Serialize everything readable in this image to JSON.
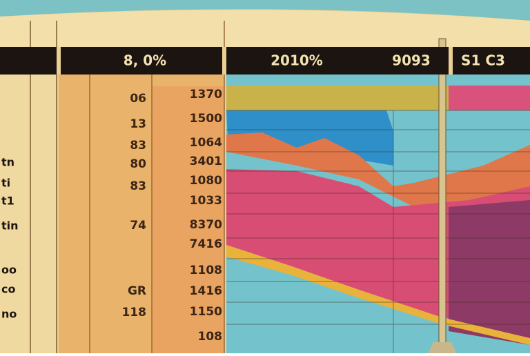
{
  "header": {
    "cells": [
      "8, 0%",
      "2010%",
      "9093",
      "S1 C3"
    ]
  },
  "table": {
    "left_column": [
      "06",
      "13",
      "83",
      "80",
      "83",
      "74",
      "GR",
      "118"
    ],
    "right_column": [
      "1370",
      "1500",
      "1064",
      "3401",
      "1080",
      "1033",
      "8370",
      "7416",
      "1108",
      "1416",
      "1150",
      "108"
    ],
    "edge_labels": [
      "tn",
      "ti",
      "t1",
      "tin",
      "oo",
      "co",
      "no"
    ]
  }
}
